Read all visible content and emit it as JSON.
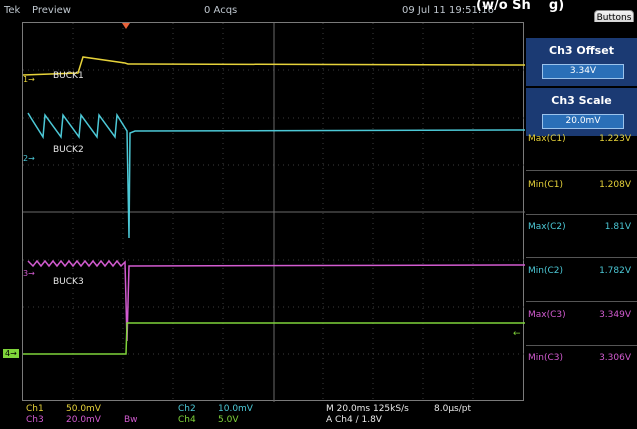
{
  "header": {
    "brand": "Tek",
    "mode": "Preview",
    "acquisitions": "0 Acqs",
    "timestamp": "09 Jul 11 19:51:16",
    "caption": "(w/o Sh",
    "caption_suffix": "g)",
    "buttons_label": "Buttons"
  },
  "channels": [
    {
      "marker": "1",
      "name": "BUCK1",
      "color": "#e6d23a"
    },
    {
      "marker": "2",
      "name": "BUCK2",
      "color": "#4cc8d6"
    },
    {
      "marker": "3",
      "name": "BUCK3",
      "color": "#d25bd0"
    },
    {
      "marker": "4",
      "name": "",
      "color": "#7fd43a"
    }
  ],
  "controls": [
    {
      "title": "Ch3 Offset",
      "value": "3.34V"
    },
    {
      "title": "Ch3 Scale",
      "value": "20.0mV"
    }
  ],
  "measurements": [
    {
      "label": "Max(C1)",
      "value": "1.223V",
      "color": "#e6d23a"
    },
    {
      "label": "Min(C1)",
      "value": "1.208V",
      "color": "#e6d23a"
    },
    {
      "label": "Max(C2)",
      "value": "1.81V",
      "color": "#4cc8d6"
    },
    {
      "label": "Min(C2)",
      "value": "1.782V",
      "color": "#4cc8d6"
    },
    {
      "label": "Max(C3)",
      "value": "3.349V",
      "color": "#d25bd0"
    },
    {
      "label": "Min(C3)",
      "value": "3.306V",
      "color": "#d25bd0"
    }
  ],
  "readout": {
    "ch1_label": "Ch1",
    "ch1_scale": "50.0mV",
    "ch3_label": "Ch3",
    "ch3_scale": "20.0mV",
    "bw": "Bw",
    "ch2_label": "Ch2",
    "ch2_scale": "10.0mV",
    "ch4_label": "Ch4",
    "ch4_scale": "5.0V",
    "timebase": "M 20.0ms 125kS/s",
    "resolution": "8.0µs/pt",
    "trigger": "A  Ch4  ∕  1.8V"
  }
}
